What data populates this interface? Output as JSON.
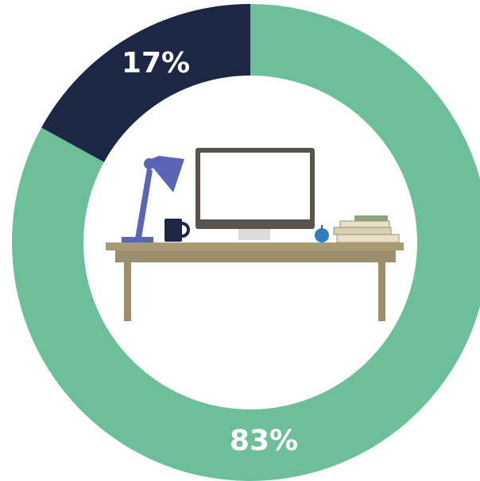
{
  "chart_data": {
    "type": "donut",
    "values": [
      83,
      17
    ],
    "value_labels": [
      "83%",
      "17%"
    ],
    "colors": [
      "#6dbf9a",
      "#1b2744"
    ]
  }
}
